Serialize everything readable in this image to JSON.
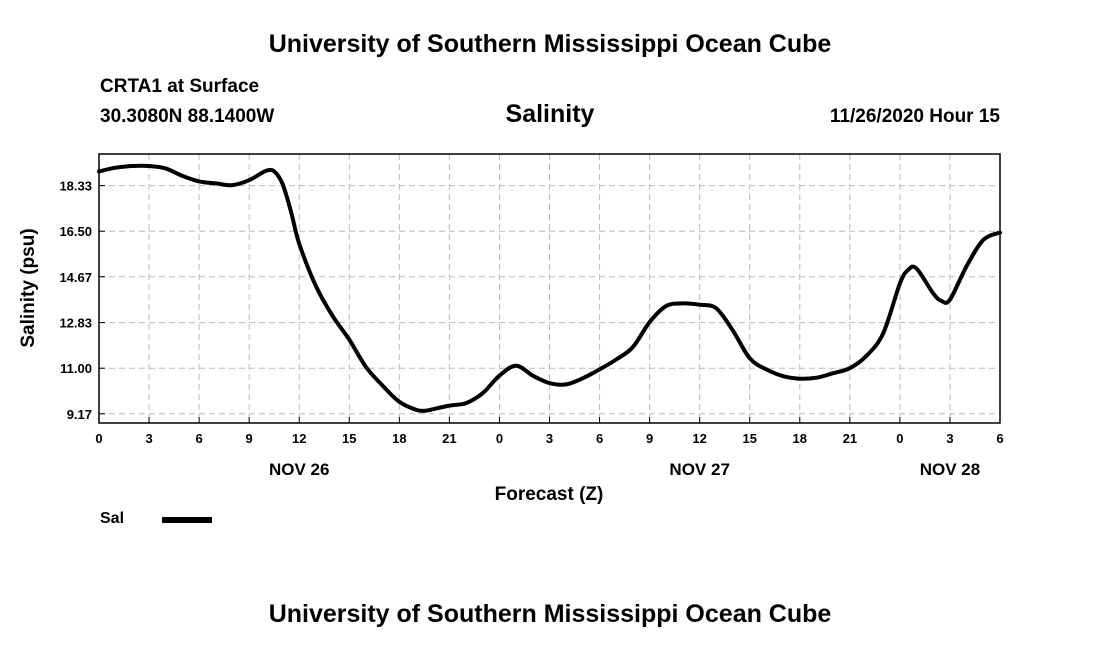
{
  "header": {
    "title": "University of Southern Mississippi Ocean Cube",
    "station": "CRTA1 at Surface",
    "coordinates": "30.3080N 88.1400W",
    "parameter": "Salinity",
    "datetime": "11/26/2020 Hour 15"
  },
  "footer": {
    "title": "University of Southern Mississippi Ocean Cube"
  },
  "legend": {
    "label": "Sal"
  },
  "chart_data": {
    "type": "line",
    "title": "Salinity",
    "xlabel": "Forecast (Z)",
    "ylabel": "Salinity (psu)",
    "xlim": [
      0,
      54
    ],
    "ylim": [
      8.8,
      19.6
    ],
    "yticks": [
      9.17,
      11.0,
      12.83,
      14.67,
      16.5,
      18.33
    ],
    "ytick_labels": [
      "9.17",
      "11.00",
      "12.83",
      "14.67",
      "16.50",
      "18.33"
    ],
    "xticks": [
      0,
      3,
      6,
      9,
      12,
      15,
      18,
      21,
      24,
      27,
      30,
      33,
      36,
      39,
      42,
      45,
      48,
      51,
      54
    ],
    "xtick_labels": [
      "0",
      "3",
      "6",
      "9",
      "12",
      "15",
      "18",
      "21",
      "0",
      "3",
      "6",
      "9",
      "12",
      "15",
      "18",
      "21",
      "0",
      "3",
      "6"
    ],
    "day_labels": [
      {
        "x": 12,
        "label": "NOV 26"
      },
      {
        "x": 36,
        "label": "NOV 27"
      },
      {
        "x": 51,
        "label": "NOV 28"
      }
    ],
    "grid": true,
    "series": [
      {
        "name": "Sal",
        "color": "#000000",
        "x": [
          0,
          1,
          2,
          3,
          4,
          5,
          6,
          7,
          8,
          9,
          10,
          10.5,
          11,
          11.5,
          12,
          13,
          14,
          15,
          16,
          17,
          18,
          19,
          19.5,
          20,
          21,
          22,
          23,
          24,
          25,
          26,
          27,
          28,
          29,
          30,
          31,
          32,
          33,
          34,
          35,
          36,
          37,
          38,
          39,
          40,
          41,
          42,
          43,
          44,
          45,
          46,
          47,
          48,
          48.5,
          49,
          50,
          50.5,
          51,
          52,
          53,
          54
        ],
        "y": [
          18.9,
          19.05,
          19.12,
          19.12,
          19.02,
          18.72,
          18.5,
          18.42,
          18.35,
          18.55,
          18.92,
          18.9,
          18.4,
          17.3,
          16.0,
          14.3,
          13.1,
          12.15,
          11.05,
          10.3,
          9.65,
          9.33,
          9.29,
          9.35,
          9.5,
          9.6,
          10.0,
          10.7,
          11.1,
          10.7,
          10.4,
          10.35,
          10.6,
          10.95,
          11.35,
          11.85,
          12.85,
          13.5,
          13.6,
          13.55,
          13.4,
          12.5,
          11.4,
          10.95,
          10.68,
          10.58,
          10.62,
          10.8,
          11.0,
          11.5,
          12.4,
          14.4,
          14.95,
          15.0,
          14.0,
          13.7,
          13.75,
          15.1,
          16.15,
          16.45
        ]
      }
    ]
  }
}
